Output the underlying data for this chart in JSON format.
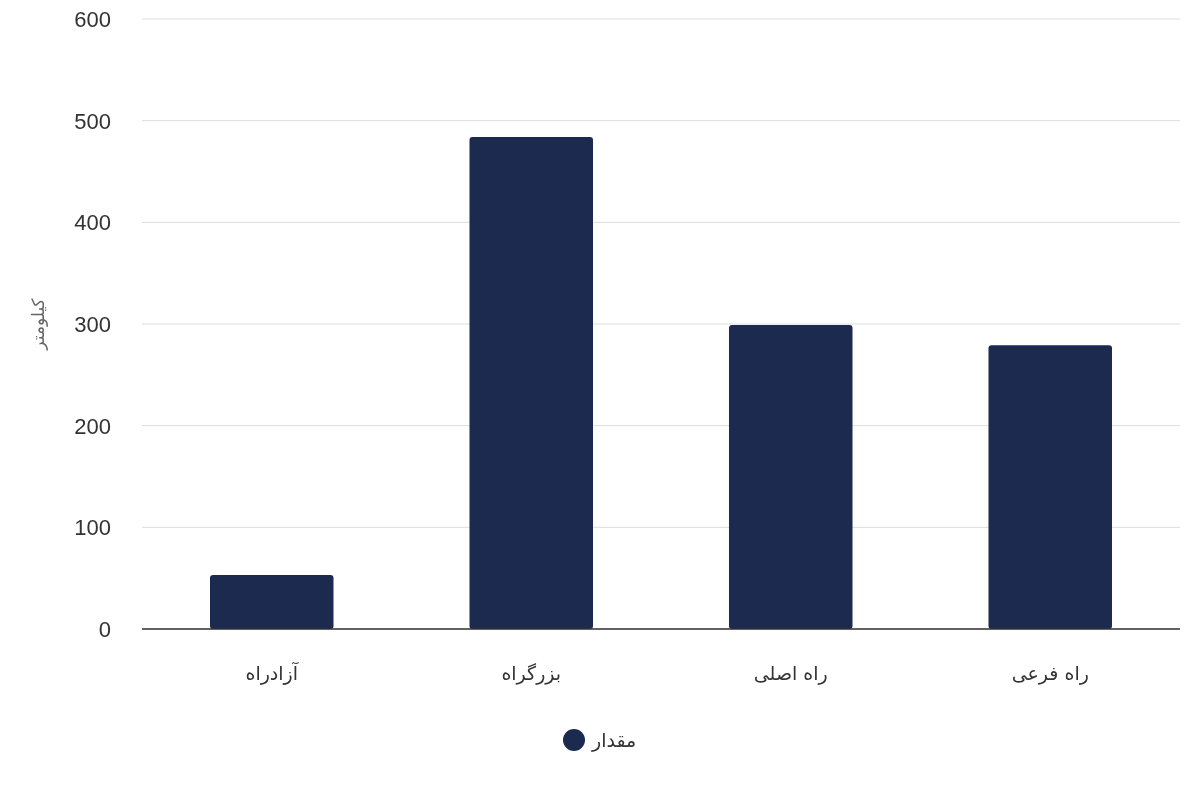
{
  "chart_data": {
    "type": "bar",
    "ylabel": "کیلومتر",
    "categories": [
      "آزادراه",
      "بزرگراه",
      "راه اصلی",
      "راه فرعی"
    ],
    "series": [
      {
        "name": "مقدار",
        "color": "#1b2a4e",
        "values": [
          53,
          484,
          299,
          279
        ]
      }
    ],
    "ylim": [
      0,
      600
    ],
    "yticks": [
      0,
      100,
      200,
      300,
      400,
      500,
      600
    ],
    "grid": "y",
    "legend": "bottom"
  }
}
